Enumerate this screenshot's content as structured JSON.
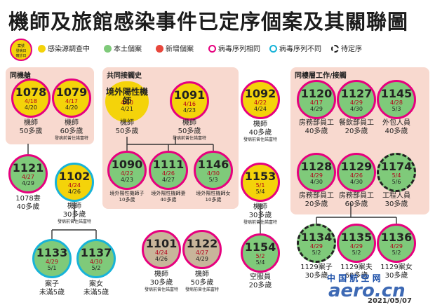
{
  "title": "機師及旅館感染事件已定序個案及其關聯圖",
  "legend": {
    "sample": [
      "案號",
      "發病日",
      "確診日"
    ],
    "items": [
      {
        "label": "感染源調查中",
        "color": "#f4d30a"
      },
      {
        "label": "本土個案",
        "color": "#7fca7a"
      },
      {
        "label": "新增個案",
        "color": "#e8473c"
      },
      {
        "label": "病毒序列相同",
        "ring": "#e6007e"
      },
      {
        "label": "病毒序列不同",
        "ring": "#18b3d8"
      },
      {
        "label": "待定序",
        "ring": "#222222"
      }
    ]
  },
  "panels": {
    "same_building": "同機艙",
    "common_contact": "共同接觸史",
    "same_floor": "同樓層工作/接觸"
  },
  "nodes": {
    "n1078": {
      "num": "1078",
      "d1": "4/18",
      "d2": "4/20",
      "name": "機師",
      "age": "50多歲",
      "note": ""
    },
    "n1079": {
      "num": "1079",
      "d1": "4/17",
      "d2": "4/20",
      "name": "機師",
      "age": "60多歲",
      "note": "發病前曾住諾富特"
    },
    "n1121": {
      "num": "1121",
      "d1": "4/27",
      "d2": "4/29",
      "name": "1078妻",
      "age": "40多歲",
      "note": ""
    },
    "n1102": {
      "num": "1102",
      "d1": "4/24",
      "d2": "4/26",
      "name": "機師",
      "age": "30多歲",
      "note": "發病前曾住諾富特"
    },
    "n1133": {
      "num": "1133",
      "d1": "4/29",
      "d2": "5/1",
      "name": "案子",
      "age": "未滿5歲",
      "note": ""
    },
    "n1137": {
      "num": "1137",
      "d1": "4/30",
      "d2": "5/2",
      "name": "案女",
      "age": "未滿5歲",
      "note": ""
    },
    "nOverseas": {
      "label": "境外陽性機師",
      "d1": "4/20",
      "d2": "4/21",
      "name": "機師",
      "age": "50多歲"
    },
    "n1091": {
      "num": "1091",
      "d1": "4/16",
      "d2": "4/23",
      "name": "機師",
      "age": "50多歲",
      "note": "發病前曾住諾富特"
    },
    "n1090": {
      "num": "1090",
      "d1": "4/22",
      "d2": "4/23",
      "note": "境外陽性機師子",
      "age": "10多歲"
    },
    "n1111": {
      "num": "1111",
      "d1": "4/26",
      "d2": "4/27",
      "note": "境外陽性機師妻",
      "age": "40多歲"
    },
    "n1146": {
      "num": "1146",
      "d1": "4/30",
      "d2": "5/3",
      "note": "境外陽性機師女",
      "age": "10多歲"
    },
    "n1092": {
      "num": "1092",
      "d1": "4/22",
      "d2": "4/24",
      "name": "機師",
      "age": "40多歲",
      "note": "發病前曾住諾富特"
    },
    "n1153": {
      "num": "1153",
      "d1": "5/1",
      "d2": "5/4",
      "name": "機師",
      "age": "30多歲",
      "note": "發病前曾住諾富特"
    },
    "n1154": {
      "num": "1154",
      "d1": "5/2",
      "d2": "5/4",
      "name": "空服員",
      "age": "20多歲",
      "note": ""
    },
    "n1101": {
      "num": "1101",
      "d1": "4/24",
      "d2": "4/26",
      "name": "機師",
      "age": "30多歲",
      "note": "發病前曾住諾富特"
    },
    "n1122": {
      "num": "1122",
      "d1": "4/27",
      "d2": "4/29",
      "name": "機師",
      "age": "50多歲",
      "note": "發病前曾住諾富特"
    },
    "n1120": {
      "num": "1120",
      "d1": "4/17",
      "d2": "4/29",
      "name": "房務部員工",
      "age": "40多歲"
    },
    "n1127": {
      "num": "1127",
      "d1": "4/29",
      "d2": "4/30",
      "name": "餐飲部員工",
      "age": "20多歲"
    },
    "n1145": {
      "num": "1145",
      "d1": "4/28",
      "d2": "5/3",
      "name": "外包人員",
      "age": "40多歲"
    },
    "n1128": {
      "num": "1128",
      "d1": "4/29",
      "d2": "4/30",
      "name": "房務部員工",
      "age": "20多歲"
    },
    "n1129": {
      "num": "1129",
      "d1": "4/26",
      "d2": "4/30",
      "name": "房務部員工",
      "age": "60多歲"
    },
    "n1174": {
      "num": "1174",
      "d1": "5/4",
      "d2": "5/6",
      "name": "工程人員",
      "age": "30多歲"
    },
    "n1134": {
      "num": "1134",
      "d1": "4/29",
      "d2": "5/2",
      "name": "1129案子",
      "age": "30多歲"
    },
    "n1135": {
      "num": "1135",
      "d1": "4/29",
      "d2": "5/2",
      "name": "1129案夫",
      "age": "60多歲"
    },
    "n1136": {
      "num": "1136",
      "d1": "4/29",
      "d2": "5/2",
      "name": "1129案女",
      "age": "30多歲"
    }
  },
  "watermark": {
    "cn": "中 国 航 空 网",
    "en": "aero.cn",
    "date": "2021/05/07"
  }
}
